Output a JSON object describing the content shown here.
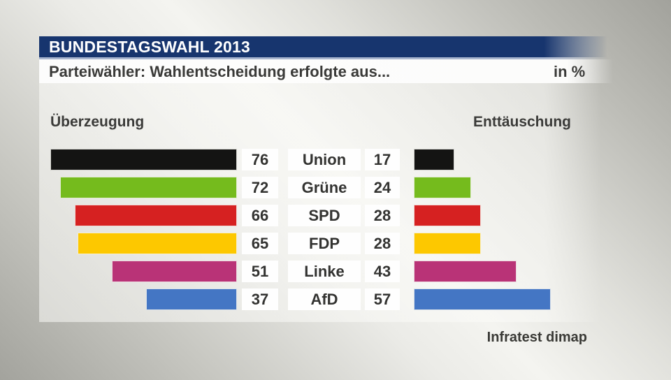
{
  "title_bar": {
    "text": "BUNDESTAGSWAHL 2013"
  },
  "subtitle_bar": {
    "text": "Parteiwähler: Wahlentscheidung erfolgte aus...",
    "unit": "in %"
  },
  "column_headers": {
    "left": "Überzeugung",
    "right": "Enttäuschung"
  },
  "source": "Infratest dimap",
  "colors": {
    "header_bar": "#17356e",
    "header_text": "#ffffff",
    "subtitle_text": "#3a3a38",
    "separator_line": "#a9b6cf",
    "value_box_background": "#fefefe",
    "value_text": "#333331"
  },
  "chart_data": {
    "type": "bar",
    "orientation": "horizontal-back-to-back",
    "title": "Parteiwähler: Wahlentscheidung erfolgte aus...",
    "unit": "%",
    "value_range": [
      0,
      100
    ],
    "categories": [
      "Union",
      "Grüne",
      "SPD",
      "FDP",
      "Linke",
      "AfD"
    ],
    "series": [
      {
        "name": "Überzeugung",
        "side": "left",
        "values": [
          76,
          72,
          66,
          65,
          51,
          37
        ]
      },
      {
        "name": "Enttäuschung",
        "side": "right",
        "values": [
          17,
          24,
          28,
          28,
          43,
          57
        ]
      }
    ],
    "bar_colors": [
      "#141413",
      "#75bb1d",
      "#d62121",
      "#fdc800",
      "#b93377",
      "#4476c4"
    ],
    "legend_position": "column headers above bars",
    "grid": false
  }
}
